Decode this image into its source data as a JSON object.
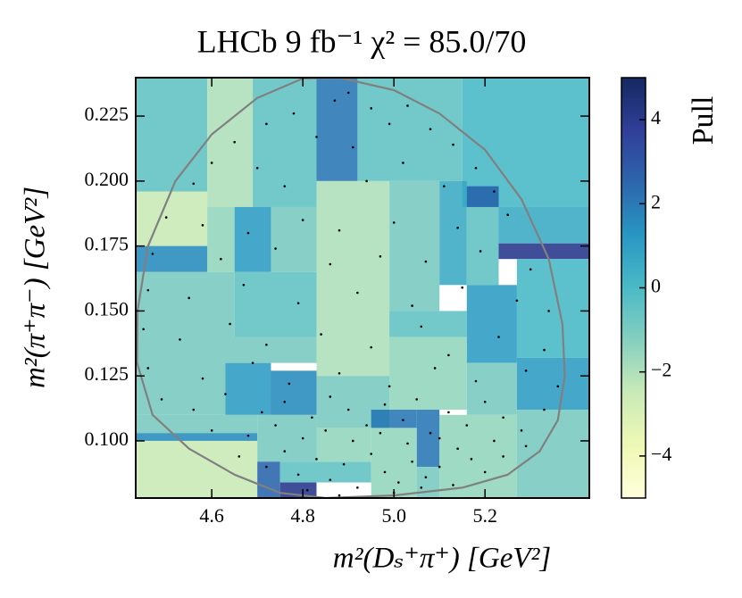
{
  "chart_data": {
    "type": "heatmap",
    "title": "LHCb  9 fb⁻¹  χ² = 85.0/70",
    "xlabel": "m²(Dₛ⁺π⁺) [GeV²]",
    "ylabel": "m²(π⁺π⁻) [GeV²]",
    "colorbar_label": "Pull",
    "xlim": [
      4.433,
      5.429
    ],
    "ylim": [
      0.078,
      0.2398
    ],
    "xticks": [
      4.6,
      4.8,
      {
        "value": 5,
        "label": "5.0"
      },
      5.2
    ],
    "yticks": [
      {
        "value": 0.1,
        "label": "0.100"
      },
      0.125,
      {
        "value": 0.15,
        "label": "0.150"
      },
      0.175,
      {
        "value": 0.2,
        "label": "0.200"
      },
      0.225
    ],
    "colorbar_lim": [
      -5,
      5
    ],
    "colorbar_ticks": [
      {
        "value": -4,
        "label": "−4"
      },
      {
        "value": -2,
        "label": "−2"
      },
      0,
      2,
      4
    ],
    "colormap": [
      "#ffffd9",
      "#edf8b1",
      "#c7e9b4",
      "#7fcdbb",
      "#41b6c4",
      "#1d91c0",
      "#225ea8",
      "#253494",
      "#081d58"
    ],
    "boundary_color": "#808080",
    "point_color": "#000000",
    "bins": [
      {
        "x": [
          4.433,
          4.59
        ],
        "y": [
          0.196,
          0.2398
        ],
        "value": -0.5
      },
      {
        "x": [
          4.59,
          4.69
        ],
        "y": [
          0.19,
          0.2398
        ],
        "value": -2
      },
      {
        "x": [
          4.69,
          4.83
        ],
        "y": [
          0.19,
          0.2398
        ],
        "value": -0.5
      },
      {
        "x": [
          4.83,
          4.92
        ],
        "y": [
          0.2,
          0.2398
        ],
        "value": 2
      },
      {
        "x": [
          4.92,
          5.15
        ],
        "y": [
          0.2,
          0.2398
        ],
        "value": -0.5
      },
      {
        "x": [
          5.15,
          5.429
        ],
        "y": [
          0.19,
          0.2398
        ],
        "value": 0
      },
      {
        "x": [
          4.433,
          4.59
        ],
        "y": [
          0.175,
          0.196
        ],
        "value": -2.5
      },
      {
        "x": [
          4.59,
          4.65
        ],
        "y": [
          0.165,
          0.19
        ],
        "value": -1.5
      },
      {
        "x": [
          4.65,
          4.73
        ],
        "y": [
          0.165,
          0.19
        ],
        "value": 1
      },
      {
        "x": [
          4.73,
          4.83
        ],
        "y": [
          0.165,
          0.19
        ],
        "value": -1
      },
      {
        "x": [
          4.83,
          4.99
        ],
        "y": [
          0.125,
          0.2
        ],
        "value": -2
      },
      {
        "x": [
          4.99,
          5.1
        ],
        "y": [
          0.15,
          0.2
        ],
        "value": -1
      },
      {
        "x": [
          5.1,
          5.16
        ],
        "y": [
          0.16,
          0.2
        ],
        "value": 0.5
      },
      {
        "x": [
          5.16,
          5.23
        ],
        "y": [
          0.19,
          0.198
        ],
        "value": 2.5
      },
      {
        "x": [
          5.16,
          5.23
        ],
        "y": [
          0.16,
          0.19
        ],
        "value": -0.5
      },
      {
        "x": [
          5.23,
          5.429
        ],
        "y": [
          0.176,
          0.19
        ],
        "value": 0.5
      },
      {
        "x": [
          5.23,
          5.429
        ],
        "y": [
          0.17,
          0.176
        ],
        "value": 4
      },
      {
        "x": [
          4.433,
          4.59
        ],
        "y": [
          0.165,
          0.175
        ],
        "value": 1.5
      },
      {
        "x": [
          4.433,
          4.65
        ],
        "y": [
          0.14,
          0.165
        ],
        "value": -1
      },
      {
        "x": [
          4.65,
          4.83
        ],
        "y": [
          0.14,
          0.165
        ],
        "value": -0.5
      },
      {
        "x": [
          4.99,
          5.16
        ],
        "y": [
          0.14,
          0.15
        ],
        "value": -0.5
      },
      {
        "x": [
          5.16,
          5.27
        ],
        "y": [
          0.13,
          0.16
        ],
        "value": 1
      },
      {
        "x": [
          5.27,
          5.429
        ],
        "y": [
          0.132,
          0.17
        ],
        "value": 0
      },
      {
        "x": [
          4.433,
          4.63
        ],
        "y": [
          0.11,
          0.14
        ],
        "value": -1
      },
      {
        "x": [
          4.63,
          4.73
        ],
        "y": [
          0.11,
          0.13
        ],
        "value": 1
      },
      {
        "x": [
          4.73,
          4.83
        ],
        "y": [
          0.11,
          0.127
        ],
        "value": 1.5
      },
      {
        "x": [
          4.63,
          4.83
        ],
        "y": [
          0.13,
          0.14
        ],
        "value": -1
      },
      {
        "x": [
          4.83,
          4.99
        ],
        "y": [
          0.105,
          0.125
        ],
        "value": -1
      },
      {
        "x": [
          4.99,
          5.16
        ],
        "y": [
          0.112,
          0.14
        ],
        "value": -1.5
      },
      {
        "x": [
          5.16,
          5.27
        ],
        "y": [
          0.11,
          0.13
        ],
        "value": -1
      },
      {
        "x": [
          5.27,
          5.429
        ],
        "y": [
          0.112,
          0.132
        ],
        "value": 1
      },
      {
        "x": [
          4.433,
          4.7
        ],
        "y": [
          0.103,
          0.11
        ],
        "value": -1
      },
      {
        "x": [
          4.433,
          4.7
        ],
        "y": [
          0.1,
          0.103
        ],
        "value": 1.5
      },
      {
        "x": [
          4.433,
          4.7
        ],
        "y": [
          0.078,
          0.1
        ],
        "value": -2.5
      },
      {
        "x": [
          4.7,
          4.83
        ],
        "y": [
          0.092,
          0.11
        ],
        "value": -1
      },
      {
        "x": [
          4.7,
          4.75
        ],
        "y": [
          0.078,
          0.092
        ],
        "value": 2.5
      },
      {
        "x": [
          4.75,
          4.83
        ],
        "y": [
          0.078,
          0.084
        ],
        "value": 4
      },
      {
        "x": [
          4.75,
          4.95
        ],
        "y": [
          0.084,
          0.092
        ],
        "value": -0.5
      },
      {
        "x": [
          4.83,
          4.95
        ],
        "y": [
          0.092,
          0.105
        ],
        "value": -1.5
      },
      {
        "x": [
          4.95,
          5.05
        ],
        "y": [
          0.105,
          0.112
        ],
        "value": 2
      },
      {
        "x": [
          5.05,
          5.1
        ],
        "y": [
          0.09,
          0.112
        ],
        "value": 2
      },
      {
        "x": [
          4.95,
          5.05
        ],
        "y": [
          0.078,
          0.105
        ],
        "value": -1.5
      },
      {
        "x": [
          5.1,
          5.27
        ],
        "y": [
          0.078,
          0.11
        ],
        "value": -1.5
      },
      {
        "x": [
          5.05,
          5.1
        ],
        "y": [
          0.078,
          0.09
        ],
        "value": -1
      },
      {
        "x": [
          5.27,
          5.429
        ],
        "y": [
          0.078,
          0.112
        ],
        "value": -1
      }
    ],
    "boundary": {
      "x": [
        4.88,
        5.0,
        5.1,
        5.2,
        5.28,
        5.34,
        5.37,
        5.375,
        5.36,
        5.32,
        5.25,
        5.15,
        5.0,
        4.85,
        4.75,
        4.65,
        4.55,
        4.47,
        4.436,
        4.437,
        4.46,
        4.52,
        4.6,
        4.7,
        4.8
      ],
      "y": [
        0.2398,
        0.235,
        0.226,
        0.212,
        0.193,
        0.17,
        0.145,
        0.125,
        0.108,
        0.096,
        0.087,
        0.082,
        0.079,
        0.078,
        0.08,
        0.087,
        0.097,
        0.11,
        0.13,
        0.15,
        0.175,
        0.2,
        0.218,
        0.232,
        0.2395
      ]
    },
    "points": {
      "x": [
        4.9,
        4.87,
        4.95,
        5.03,
        4.78,
        4.72,
        4.99,
        5.08,
        4.65,
        4.83,
        4.91,
        5.13,
        4.6,
        4.7,
        5.02,
        5.18,
        4.56,
        4.76,
        4.94,
        5.11,
        5.22,
        4.5,
        4.58,
        4.68,
        4.8,
        4.88,
        5.0,
        5.14,
        5.25,
        4.47,
        4.62,
        4.74,
        4.86,
        4.97,
        5.07,
        5.19,
        5.3,
        4.46,
        4.55,
        4.67,
        4.79,
        4.92,
        5.04,
        5.15,
        5.27,
        5.34,
        4.45,
        4.53,
        4.64,
        4.72,
        4.84,
        4.95,
        5.06,
        5.12,
        5.23,
        5.33,
        4.46,
        4.58,
        4.69,
        4.77,
        4.88,
        4.99,
        5.09,
        5.18,
        5.29,
        5.36,
        4.49,
        4.56,
        4.63,
        4.71,
        4.76,
        4.82,
        4.86,
        4.9,
        4.94,
        4.98,
        5.02,
        5.05,
        5.08,
        5.12,
        5.16,
        5.2,
        5.24,
        5.28,
        5.33,
        4.6,
        4.68,
        4.74,
        4.8,
        4.85,
        4.91,
        4.97,
        5.03,
        5.1,
        5.14,
        5.22,
        4.66,
        4.72,
        4.76,
        4.79,
        4.83,
        4.86,
        4.89,
        4.92,
        4.95,
        4.98,
        5.01,
        5.04,
        5.07,
        5.1,
        5.13,
        5.17,
        5.2,
        5.24,
        5.29,
        4.81,
        4.88,
        5.0,
        5.06
      ],
      "y": [
        0.234,
        0.231,
        0.228,
        0.229,
        0.226,
        0.222,
        0.222,
        0.22,
        0.215,
        0.217,
        0.213,
        0.214,
        0.207,
        0.205,
        0.207,
        0.205,
        0.199,
        0.198,
        0.2,
        0.198,
        0.196,
        0.186,
        0.183,
        0.18,
        0.185,
        0.181,
        0.184,
        0.182,
        0.187,
        0.172,
        0.17,
        0.174,
        0.168,
        0.171,
        0.169,
        0.173,
        0.166,
        0.158,
        0.155,
        0.16,
        0.153,
        0.157,
        0.152,
        0.159,
        0.154,
        0.15,
        0.143,
        0.139,
        0.145,
        0.137,
        0.141,
        0.136,
        0.144,
        0.133,
        0.14,
        0.135,
        0.128,
        0.124,
        0.13,
        0.122,
        0.126,
        0.121,
        0.128,
        0.123,
        0.127,
        0.121,
        0.116,
        0.112,
        0.118,
        0.111,
        0.115,
        0.109,
        0.117,
        0.112,
        0.106,
        0.114,
        0.108,
        0.116,
        0.103,
        0.111,
        0.106,
        0.115,
        0.109,
        0.104,
        0.112,
        0.104,
        0.102,
        0.106,
        0.101,
        0.104,
        0.1,
        0.103,
        0.099,
        0.101,
        0.097,
        0.1,
        0.094,
        0.09,
        0.096,
        0.087,
        0.093,
        0.085,
        0.091,
        0.082,
        0.095,
        0.088,
        0.084,
        0.092,
        0.086,
        0.09,
        0.083,
        0.093,
        0.088,
        0.094,
        0.098,
        0.081,
        0.079,
        0.08,
        0.082
      ]
    }
  }
}
